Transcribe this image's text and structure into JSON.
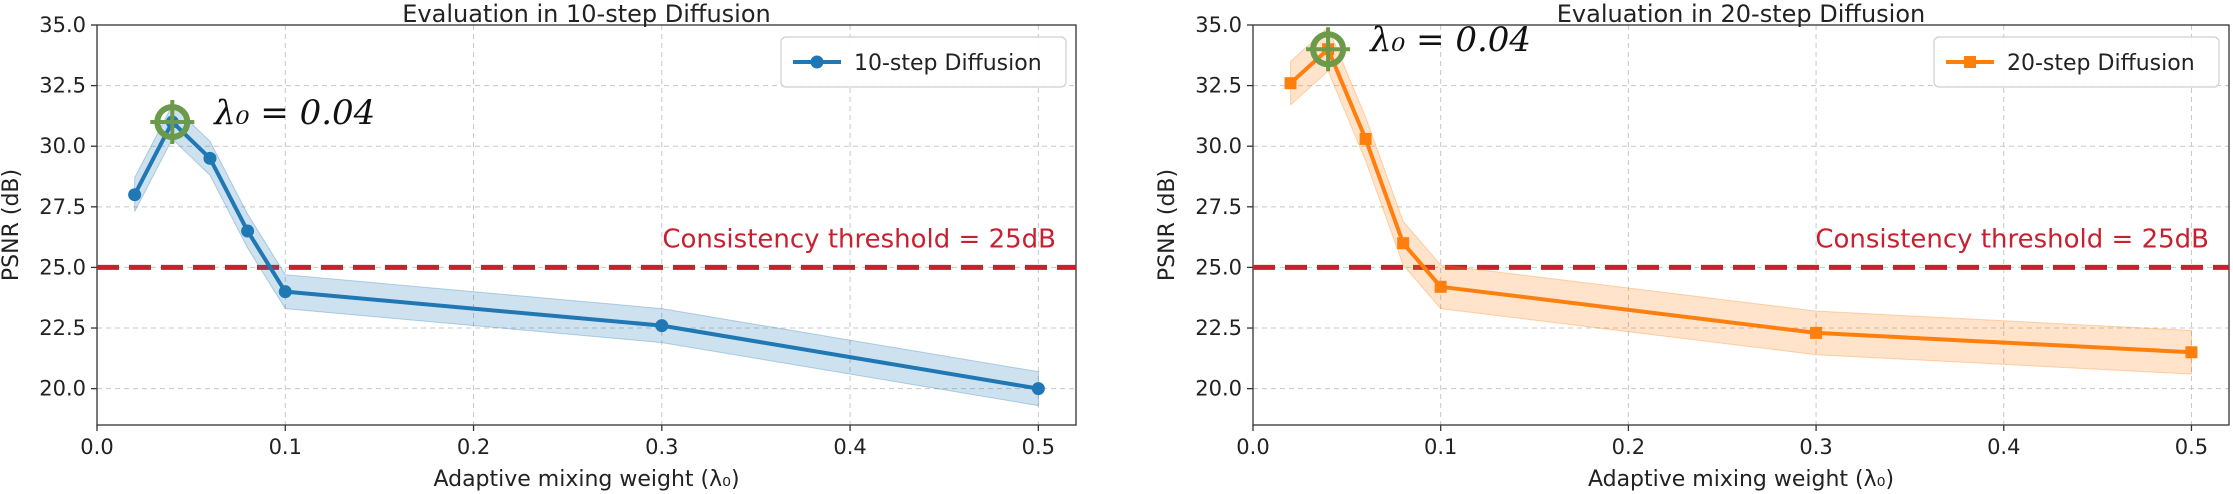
{
  "chart_data": [
    {
      "type": "line",
      "title": "Evaluation in 10-step Diffusion",
      "xlabel": "Adaptive mixing weight (λ₀)",
      "ylabel": "PSNR (dB)",
      "xlim": [
        0,
        0.52
      ],
      "ylim": [
        18.5,
        35
      ],
      "xticks": [
        "0.0",
        "0.1",
        "0.2",
        "0.3",
        "0.4",
        "0.5"
      ],
      "yticks": [
        "20.0",
        "22.5",
        "25.0",
        "27.5",
        "30.0",
        "32.5",
        "35.0"
      ],
      "grid": true,
      "legend_position": "top-right",
      "series": [
        {
          "name": "10-step Diffusion",
          "color": "#1f77b4",
          "marker": "circle",
          "x": [
            0.02,
            0.04,
            0.06,
            0.08,
            0.1,
            0.3,
            0.5
          ],
          "y": [
            28.0,
            31.0,
            29.5,
            26.5,
            24.0,
            22.6,
            20.0
          ],
          "band_half_width": 0.7
        }
      ],
      "threshold": {
        "value": 25.0,
        "label": "Consistency threshold = 25dB",
        "color": "#c8202f"
      },
      "annotation": {
        "x": 0.04,
        "y": 31.0,
        "label": "λ₀ = 0.04",
        "marker_color": "#6a9a4a"
      }
    },
    {
      "type": "line",
      "title": "Evaluation in 20-step Diffusion",
      "xlabel": "Adaptive mixing weight (λ₀)",
      "ylabel": "PSNR (dB)",
      "xlim": [
        0,
        0.52
      ],
      "ylim": [
        18.5,
        35
      ],
      "xticks": [
        "0.0",
        "0.1",
        "0.2",
        "0.3",
        "0.4",
        "0.5"
      ],
      "yticks": [
        "20.0",
        "22.5",
        "25.0",
        "27.5",
        "30.0",
        "32.5",
        "35.0"
      ],
      "grid": true,
      "legend_position": "top-right",
      "series": [
        {
          "name": "20-step Diffusion",
          "color": "#ff7f0e",
          "marker": "square",
          "x": [
            0.02,
            0.04,
            0.06,
            0.08,
            0.1,
            0.3,
            0.5
          ],
          "y": [
            32.6,
            34.0,
            30.3,
            26.0,
            24.2,
            22.3,
            21.5
          ],
          "band_half_width": 0.9
        }
      ],
      "threshold": {
        "value": 25.0,
        "label": "Consistency threshold = 25dB",
        "color": "#c8202f"
      },
      "annotation": {
        "x": 0.04,
        "y": 34.0,
        "label": "λ₀ = 0.04",
        "marker_color": "#6a9a4a"
      }
    }
  ]
}
